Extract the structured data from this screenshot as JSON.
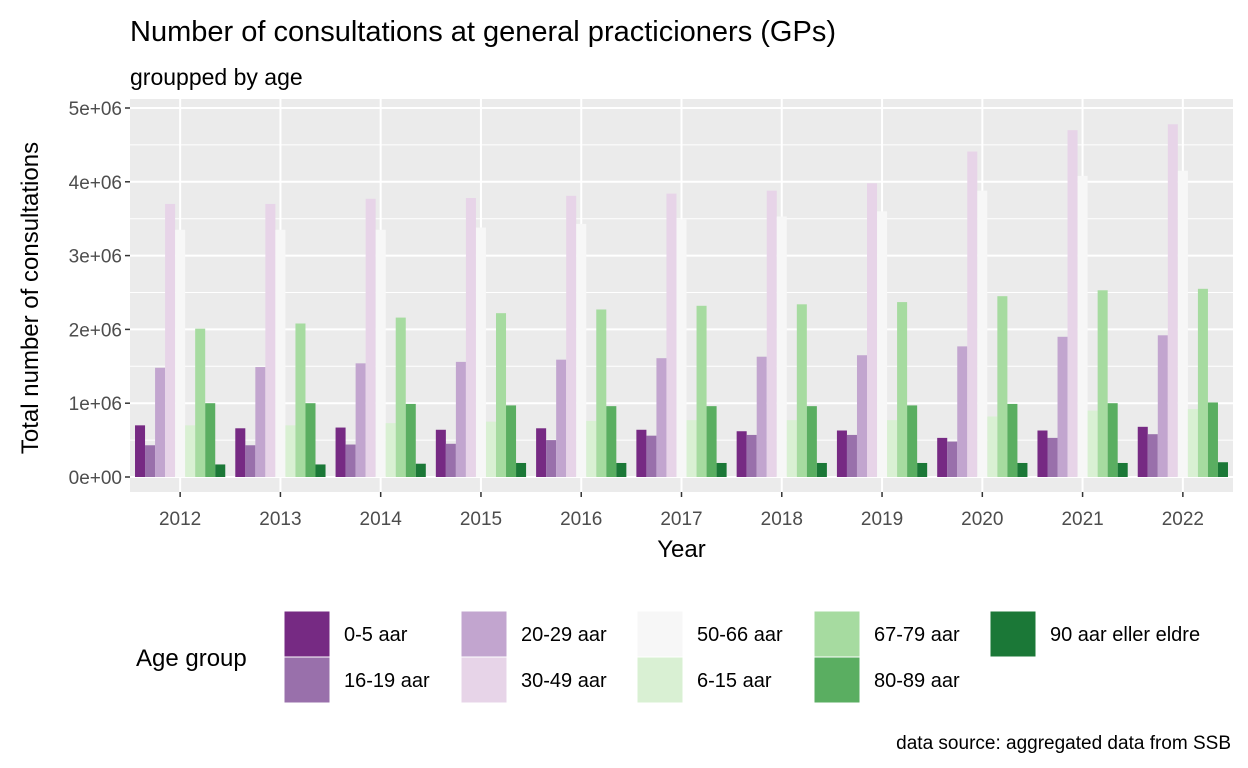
{
  "chart_data": {
    "type": "bar",
    "title": "Number of consultations at general practicioners (GPs)",
    "subtitle": "groupped by age",
    "xlabel": "Year",
    "ylabel": "Total number of  consultations",
    "caption": "data source: aggregated data from SSB",
    "ylim": [
      0,
      5000000
    ],
    "y_ticks": [
      0,
      1000000,
      2000000,
      3000000,
      4000000,
      5000000
    ],
    "y_tick_labels": [
      "0e+00",
      "1e+06",
      "2e+06",
      "3e+06",
      "4e+06",
      "5e+06"
    ],
    "grid": true,
    "legend_position": "bottom",
    "legend_title": "Age group",
    "categories": [
      "2012",
      "2013",
      "2014",
      "2015",
      "2016",
      "2017",
      "2018",
      "2019",
      "2020",
      "2021",
      "2022"
    ],
    "series": [
      {
        "name": "0-5 aar",
        "color": "#762A83",
        "values": [
          700000,
          660000,
          670000,
          640000,
          660000,
          640000,
          620000,
          630000,
          530000,
          630000,
          680000
        ]
      },
      {
        "name": "16-19 aar",
        "color": "#9970AB",
        "values": [
          430000,
          430000,
          440000,
          450000,
          500000,
          560000,
          570000,
          570000,
          480000,
          530000,
          580000
        ]
      },
      {
        "name": "20-29 aar",
        "color": "#C2A5CF",
        "values": [
          1480000,
          1490000,
          1540000,
          1560000,
          1590000,
          1610000,
          1630000,
          1650000,
          1770000,
          1900000,
          1920000
        ]
      },
      {
        "name": "30-49 aar",
        "color": "#E7D4E8",
        "values": [
          3700000,
          3700000,
          3770000,
          3780000,
          3810000,
          3840000,
          3880000,
          3980000,
          4410000,
          4700000,
          4780000
        ]
      },
      {
        "name": "50-66 aar",
        "color": "#F7F7F7",
        "values": [
          3350000,
          3350000,
          3350000,
          3380000,
          3430000,
          3490000,
          3530000,
          3600000,
          3880000,
          4080000,
          4150000
        ]
      },
      {
        "name": "6-15 aar",
        "color": "#D9F0D3",
        "values": [
          700000,
          700000,
          730000,
          750000,
          760000,
          770000,
          770000,
          770000,
          820000,
          900000,
          920000
        ]
      },
      {
        "name": "67-79 aar",
        "color": "#A6DBA0",
        "values": [
          2010000,
          2080000,
          2160000,
          2220000,
          2270000,
          2320000,
          2340000,
          2370000,
          2450000,
          2530000,
          2550000
        ]
      },
      {
        "name": "80-89 aar",
        "color": "#5AAE61",
        "values": [
          1000000,
          1000000,
          990000,
          970000,
          960000,
          960000,
          960000,
          970000,
          990000,
          1000000,
          1010000
        ]
      },
      {
        "name": "90 aar eller eldre",
        "color": "#1B7837",
        "values": [
          170000,
          170000,
          180000,
          190000,
          190000,
          190000,
          190000,
          190000,
          190000,
          190000,
          200000
        ]
      }
    ]
  }
}
